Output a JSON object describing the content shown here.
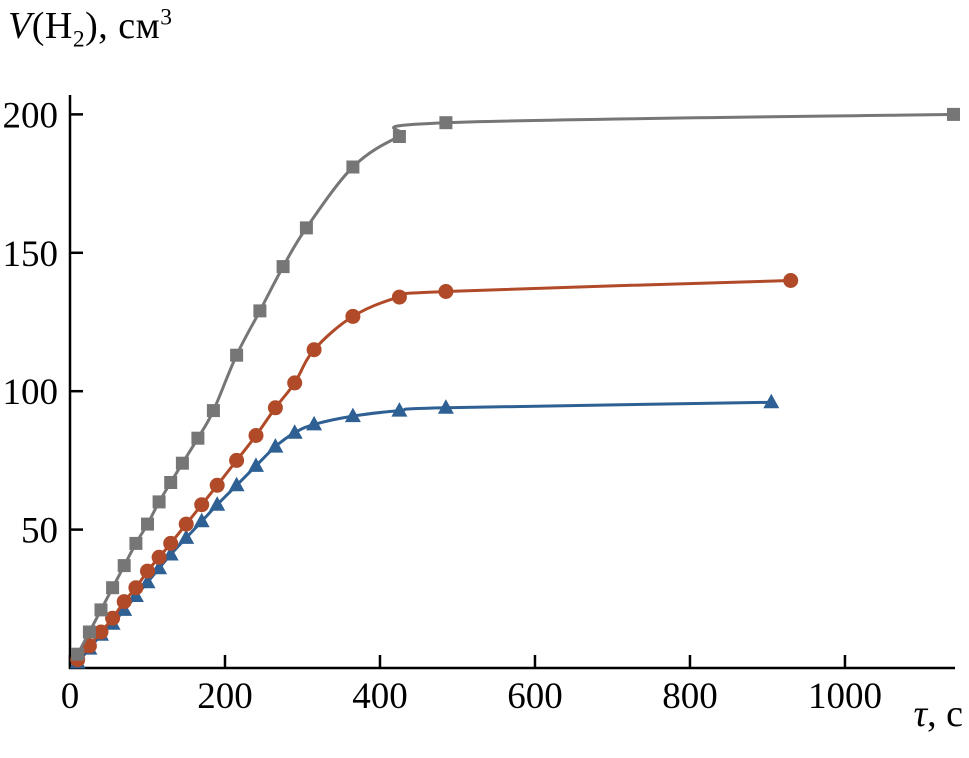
{
  "y_axis_title": {
    "var": "V",
    "open": "(H",
    "sub": "2",
    "close": "), см",
    "sup": "3"
  },
  "x_axis_title": {
    "var": "τ",
    "rest": ", с"
  },
  "chart_data": {
    "type": "line",
    "title": "",
    "xlabel": "τ, с",
    "ylabel": "V(H₂), см³",
    "xlim": [
      0,
      1142
    ],
    "ylim": [
      0,
      207
    ],
    "xticks": [
      0,
      200,
      400,
      600,
      800,
      1000
    ],
    "yticks": [
      50,
      100,
      150,
      200
    ],
    "grid": false,
    "legend_position": "none",
    "axis_color": "#000000",
    "series": [
      {
        "name": "blue-triangles",
        "marker": "triangle",
        "color": "#2e6094",
        "x": [
          10,
          25,
          40,
          55,
          70,
          85,
          100,
          115,
          130,
          150,
          170,
          190,
          215,
          240,
          265,
          290,
          315,
          365,
          425,
          485,
          905
        ],
        "y": [
          2,
          7,
          12,
          16,
          21,
          26,
          31,
          36,
          41,
          47,
          53,
          59,
          66,
          73,
          80,
          85,
          88,
          91,
          93,
          94,
          96
        ]
      },
      {
        "name": "red-circles",
        "marker": "circle",
        "color": "#b04a28",
        "x": [
          10,
          25,
          40,
          55,
          70,
          85,
          100,
          115,
          130,
          150,
          170,
          190,
          215,
          240,
          265,
          290,
          315,
          365,
          425,
          485,
          930
        ],
        "y": [
          3,
          8,
          13,
          18,
          24,
          29,
          35,
          40,
          45,
          52,
          59,
          66,
          75,
          84,
          94,
          103,
          115,
          127,
          134,
          136,
          140
        ]
      },
      {
        "name": "gray-squares",
        "marker": "square",
        "color": "#767676",
        "x": [
          10,
          25,
          40,
          55,
          70,
          85,
          100,
          115,
          130,
          145,
          165,
          185,
          215,
          245,
          275,
          305,
          365,
          425,
          485,
          1140
        ],
        "y": [
          5,
          13,
          21,
          29,
          37,
          45,
          52,
          60,
          67,
          74,
          83,
          93,
          113,
          129,
          145,
          159,
          181,
          192,
          197,
          200
        ]
      }
    ]
  }
}
